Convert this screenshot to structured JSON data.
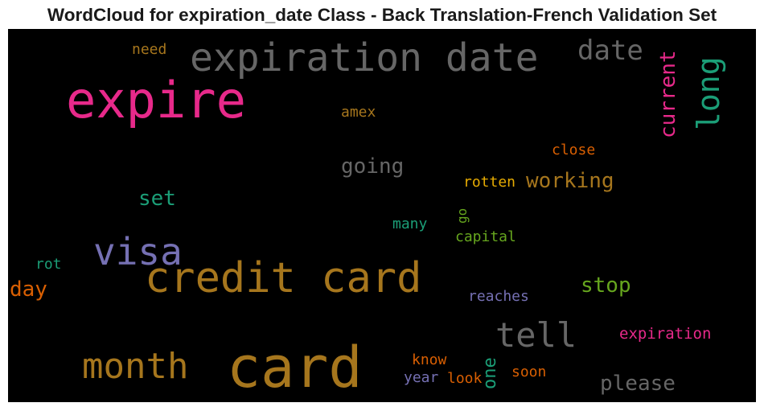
{
  "title": "WordCloud for expiration_date Class - Back Translation-French Validation Set",
  "chart_data": {
    "type": "wordcloud",
    "title": "WordCloud for expiration_date Class - Back Translation-French Validation Set",
    "words": [
      {
        "text": "expiration date",
        "color": "#666666"
      },
      {
        "text": "expire",
        "color": "#e7298a"
      },
      {
        "text": "credit card",
        "color": "#a6761d"
      },
      {
        "text": "card",
        "color": "#a6761d"
      },
      {
        "text": "visa",
        "color": "#7570b3"
      },
      {
        "text": "month",
        "color": "#a6761d"
      },
      {
        "text": "tell",
        "color": "#666666"
      },
      {
        "text": "date",
        "color": "#666666"
      },
      {
        "text": "long",
        "color": "#1b9e77"
      },
      {
        "text": "current",
        "color": "#e7298a"
      },
      {
        "text": "working",
        "color": "#a6761d"
      },
      {
        "text": "going",
        "color": "#666666"
      },
      {
        "text": "stop",
        "color": "#66a61e"
      },
      {
        "text": "please",
        "color": "#666666"
      },
      {
        "text": "set",
        "color": "#1b9e77"
      },
      {
        "text": "day",
        "color": "#d95f02"
      },
      {
        "text": "one",
        "color": "#1b9e77"
      },
      {
        "text": "expiration",
        "color": "#e7298a"
      },
      {
        "text": "close",
        "color": "#d95f02"
      },
      {
        "text": "rotten",
        "color": "#e6ab02"
      },
      {
        "text": "reaches",
        "color": "#7570b3"
      },
      {
        "text": "capital",
        "color": "#66a61e"
      },
      {
        "text": "many",
        "color": "#1b9e77"
      },
      {
        "text": "amex",
        "color": "#a6761d"
      },
      {
        "text": "need",
        "color": "#a6761d"
      },
      {
        "text": "know",
        "color": "#d95f02"
      },
      {
        "text": "soon",
        "color": "#d95f02"
      },
      {
        "text": "look",
        "color": "#d95f02"
      },
      {
        "text": "year",
        "color": "#7570b3"
      },
      {
        "text": "rot",
        "color": "#1b9e77"
      },
      {
        "text": "go",
        "color": "#66a61e"
      }
    ]
  }
}
